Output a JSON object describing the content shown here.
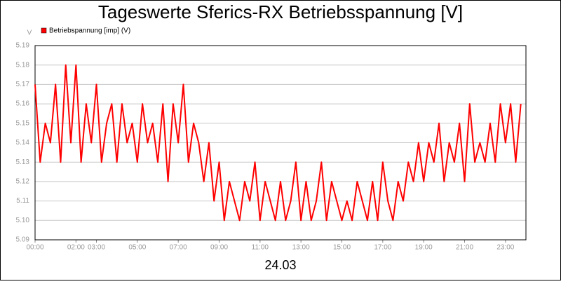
{
  "chart_data": {
    "type": "line",
    "title": "Tageswerte Sferics-RX Betriebsspannung [V]",
    "y_unit": "V",
    "xlabel": "24.03",
    "x": [
      0,
      0.25,
      0.5,
      0.75,
      1,
      1.25,
      1.5,
      1.75,
      2,
      2.25,
      2.5,
      2.75,
      3,
      3.25,
      3.5,
      3.75,
      4,
      4.25,
      4.5,
      4.75,
      5,
      5.25,
      5.5,
      5.75,
      6,
      6.25,
      6.5,
      6.75,
      7,
      7.25,
      7.5,
      7.75,
      8,
      8.25,
      8.5,
      8.75,
      9,
      9.25,
      9.5,
      9.75,
      10,
      10.25,
      10.5,
      10.75,
      11,
      11.25,
      11.5,
      11.75,
      12,
      12.25,
      12.5,
      12.75,
      13,
      13.25,
      13.5,
      13.75,
      14,
      14.25,
      14.5,
      14.75,
      15,
      15.25,
      15.5,
      15.75,
      16,
      16.25,
      16.5,
      16.75,
      17,
      17.25,
      17.5,
      17.75,
      18,
      18.25,
      18.5,
      18.75,
      19,
      19.25,
      19.5,
      19.75,
      20,
      20.25,
      20.5,
      20.75,
      21,
      21.25,
      21.5,
      21.75,
      22,
      22.25,
      22.5,
      22.75,
      23,
      23.25,
      23.5,
      23.75
    ],
    "series": [
      {
        "name": "Betriebspannung [imp] (V)",
        "color": "#ff0000",
        "values": [
          5.17,
          5.13,
          5.15,
          5.14,
          5.17,
          5.13,
          5.18,
          5.14,
          5.18,
          5.13,
          5.16,
          5.14,
          5.17,
          5.13,
          5.15,
          5.16,
          5.13,
          5.16,
          5.14,
          5.15,
          5.13,
          5.16,
          5.14,
          5.15,
          5.13,
          5.16,
          5.12,
          5.16,
          5.14,
          5.17,
          5.13,
          5.15,
          5.14,
          5.12,
          5.14,
          5.11,
          5.13,
          5.1,
          5.12,
          5.11,
          5.1,
          5.12,
          5.11,
          5.13,
          5.1,
          5.12,
          5.11,
          5.1,
          5.12,
          5.1,
          5.11,
          5.13,
          5.1,
          5.12,
          5.1,
          5.11,
          5.13,
          5.1,
          5.12,
          5.11,
          5.1,
          5.11,
          5.1,
          5.12,
          5.11,
          5.1,
          5.12,
          5.1,
          5.13,
          5.11,
          5.1,
          5.12,
          5.11,
          5.13,
          5.12,
          5.14,
          5.12,
          5.14,
          5.13,
          5.15,
          5.12,
          5.14,
          5.13,
          5.15,
          5.12,
          5.16,
          5.13,
          5.14,
          5.13,
          5.15,
          5.13,
          5.16,
          5.14,
          5.16,
          5.13,
          5.16
        ]
      }
    ],
    "xlim": [
      0,
      24
    ],
    "xticks": [
      {
        "value": 0,
        "label": "00:00"
      },
      {
        "value": 2,
        "label": "02:00"
      },
      {
        "value": 3,
        "label": "03:00"
      },
      {
        "value": 5,
        "label": "05:00"
      },
      {
        "value": 7,
        "label": "07:00"
      },
      {
        "value": 9,
        "label": "09:00"
      },
      {
        "value": 11,
        "label": "11:00"
      },
      {
        "value": 13,
        "label": "13:00"
      },
      {
        "value": 15,
        "label": "15:00"
      },
      {
        "value": 17,
        "label": "17:00"
      },
      {
        "value": 19,
        "label": "19:00"
      },
      {
        "value": 21,
        "label": "21:00"
      },
      {
        "value": 23,
        "label": "23:00"
      }
    ],
    "ylim": [
      5.09,
      5.19
    ],
    "yticks": [
      5.09,
      {
        "value": 5.1,
        "label": "5.10"
      },
      5.11,
      5.12,
      5.13,
      5.14,
      5.15,
      5.16,
      5.17,
      5.18,
      5.19
    ],
    "grid": true
  }
}
